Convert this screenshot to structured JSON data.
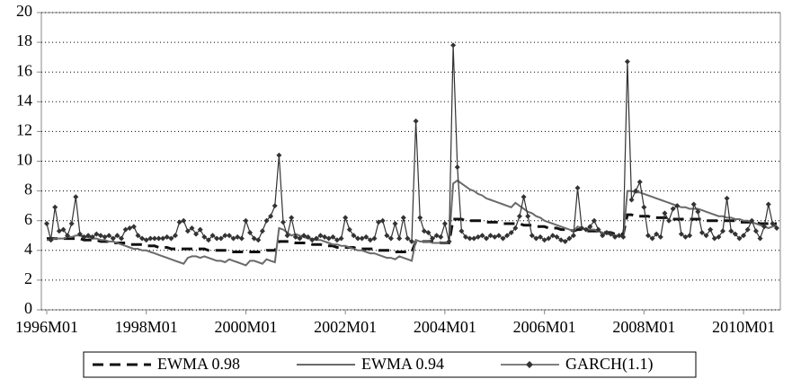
{
  "chart_data": {
    "type": "line",
    "categories": [
      "1996M01",
      null,
      null,
      null,
      null,
      null,
      null,
      null,
      null,
      null,
      null,
      null,
      null,
      null,
      null,
      null,
      null,
      null,
      null,
      null,
      null,
      null,
      null,
      null,
      "1998M01",
      null,
      null,
      null,
      null,
      null,
      null,
      null,
      null,
      null,
      null,
      null,
      null,
      null,
      null,
      null,
      null,
      null,
      null,
      null,
      null,
      null,
      null,
      null,
      "2000M01",
      null,
      null,
      null,
      null,
      null,
      null,
      null,
      null,
      null,
      null,
      null,
      null,
      null,
      null,
      null,
      null,
      null,
      null,
      null,
      null,
      null,
      null,
      null,
      "2002M01",
      null,
      null,
      null,
      null,
      null,
      null,
      null,
      null,
      null,
      null,
      null,
      null,
      null,
      null,
      null,
      null,
      null,
      null,
      null,
      null,
      null,
      null,
      null,
      "2004M01",
      null,
      null,
      null,
      null,
      null,
      null,
      null,
      null,
      null,
      null,
      null,
      null,
      null,
      null,
      null,
      null,
      null,
      null,
      null,
      null,
      null,
      null,
      null,
      "2006M01",
      null,
      null,
      null,
      null,
      null,
      null,
      null,
      null,
      null,
      null,
      null,
      null,
      null,
      null,
      null,
      null,
      null,
      null,
      null,
      null,
      null,
      null,
      null,
      "2008M01",
      null,
      null,
      null,
      null,
      null,
      null,
      null,
      null,
      null,
      null,
      null,
      null,
      null,
      null,
      null,
      null,
      null,
      null,
      null,
      null,
      null,
      null,
      null,
      "2010M01",
      null,
      null,
      null,
      null,
      null,
      null,
      null,
      null
    ],
    "series": [
      {
        "name": "EWMA 0.98",
        "color": "#111111",
        "dash": true,
        "values": [
          4.8,
          4.8,
          4.8,
          4.8,
          4.8,
          4.8,
          4.8,
          4.8,
          4.8,
          4.7,
          4.7,
          4.7,
          4.7,
          4.6,
          4.6,
          4.6,
          4.5,
          4.5,
          4.5,
          4.5,
          4.4,
          4.4,
          4.4,
          4.4,
          4.3,
          4.3,
          4.3,
          4.2,
          4.2,
          4.2,
          4.1,
          4.1,
          4.1,
          4.1,
          4.1,
          4.1,
          4.1,
          4.1,
          4.1,
          4.0,
          4.0,
          4.0,
          4.0,
          4.0,
          4.0,
          3.9,
          3.9,
          3.9,
          3.9,
          3.9,
          3.9,
          3.9,
          3.9,
          4.0,
          4.0,
          4.0,
          4.6,
          4.6,
          4.6,
          4.6,
          4.5,
          4.5,
          4.5,
          4.5,
          4.4,
          4.4,
          4.4,
          4.3,
          4.3,
          4.3,
          4.2,
          4.2,
          4.2,
          4.2,
          4.2,
          4.1,
          4.1,
          4.1,
          4.1,
          4.1,
          4.0,
          4.0,
          4.0,
          4.0,
          3.9,
          3.9,
          3.9,
          3.9,
          3.9,
          4.6,
          4.6,
          4.6,
          4.6,
          4.6,
          4.6,
          4.5,
          4.5,
          4.5,
          6.1,
          6.1,
          6.1,
          6.0,
          6.0,
          6.0,
          6.0,
          6.0,
          5.9,
          5.9,
          5.9,
          5.9,
          5.8,
          5.8,
          5.8,
          5.8,
          5.8,
          5.7,
          5.7,
          5.7,
          5.6,
          5.6,
          5.6,
          5.5,
          5.5,
          5.5,
          5.4,
          5.4,
          5.4,
          5.3,
          5.4,
          5.4,
          5.3,
          5.3,
          5.3,
          5.3,
          5.2,
          5.2,
          5.2,
          5.1,
          5.1,
          5.1,
          6.4,
          6.4,
          6.3,
          6.3,
          6.3,
          6.3,
          6.2,
          6.2,
          6.2,
          6.2,
          6.2,
          6.1,
          6.1,
          6.1,
          6.1,
          6.1,
          6.1,
          6.1,
          6.1,
          6.0,
          6.0,
          6.0,
          6.0,
          6.0,
          6.0,
          6.0,
          6.0,
          5.9,
          5.9,
          5.9,
          5.9,
          5.9,
          5.8,
          5.8,
          5.8,
          5.8,
          5.8
        ]
      },
      {
        "name": "EWMA 0.94",
        "color": "#6a6a6a",
        "values": [
          4.7,
          4.7,
          4.8,
          4.8,
          4.8,
          4.9,
          4.9,
          5.0,
          5.0,
          4.9,
          4.9,
          4.8,
          4.8,
          4.7,
          4.7,
          4.6,
          4.6,
          4.5,
          4.4,
          4.3,
          4.2,
          4.1,
          4.1,
          4.0,
          4.0,
          3.9,
          3.8,
          3.7,
          3.6,
          3.5,
          3.4,
          3.3,
          3.2,
          3.1,
          3.5,
          3.6,
          3.6,
          3.5,
          3.6,
          3.5,
          3.4,
          3.3,
          3.3,
          3.2,
          3.4,
          3.3,
          3.2,
          3.1,
          3.0,
          3.3,
          3.3,
          3.2,
          3.1,
          3.4,
          3.3,
          3.2,
          5.5,
          5.4,
          5.2,
          5.0,
          5.1,
          5.0,
          4.9,
          4.8,
          4.8,
          4.7,
          4.7,
          4.6,
          4.5,
          4.4,
          4.4,
          4.3,
          4.3,
          4.2,
          4.1,
          4.0,
          4.0,
          3.9,
          3.8,
          3.8,
          3.7,
          3.6,
          3.5,
          3.5,
          3.4,
          3.6,
          3.5,
          3.4,
          3.3,
          4.7,
          4.6,
          4.6,
          4.6,
          4.5,
          4.5,
          4.5,
          4.5,
          4.5,
          8.5,
          8.7,
          8.5,
          8.3,
          8.1,
          8.0,
          7.8,
          7.7,
          7.5,
          7.4,
          7.3,
          7.2,
          7.1,
          7.0,
          6.9,
          7.2,
          7.0,
          6.8,
          6.6,
          6.5,
          6.3,
          6.2,
          6.0,
          5.9,
          5.8,
          5.7,
          5.6,
          5.5,
          5.4,
          5.3,
          5.6,
          5.5,
          5.4,
          5.4,
          5.4,
          5.3,
          5.2,
          5.1,
          5.1,
          5.0,
          5.0,
          4.9,
          8.0,
          8.0,
          7.9,
          7.9,
          7.8,
          7.7,
          7.6,
          7.5,
          7.4,
          7.3,
          7.2,
          7.1,
          7.0,
          6.9,
          6.9,
          6.8,
          6.8,
          6.8,
          6.7,
          6.6,
          6.5,
          6.4,
          6.3,
          6.3,
          6.2,
          6.2,
          6.1,
          6.1,
          6.0,
          6.0,
          5.9,
          5.8,
          5.7,
          5.6,
          5.5,
          5.6,
          5.7
        ]
      },
      {
        "name": "GARCH(1.1)",
        "color": "#333333",
        "marker": "diamond",
        "values": [
          5.8,
          4.7,
          6.9,
          5.3,
          5.4,
          5.0,
          5.8,
          7.6,
          5.1,
          4.9,
          5.0,
          4.9,
          5.1,
          5.0,
          4.9,
          5.0,
          4.8,
          5.0,
          4.8,
          5.4,
          5.5,
          5.6,
          5.0,
          4.8,
          4.7,
          4.8,
          4.8,
          4.8,
          4.8,
          4.9,
          4.8,
          5.0,
          5.9,
          6.0,
          5.3,
          5.5,
          5.1,
          5.4,
          4.9,
          4.7,
          5.0,
          4.8,
          4.8,
          5.0,
          5.0,
          4.8,
          4.9,
          4.8,
          6.0,
          5.2,
          4.8,
          4.7,
          5.3,
          6.0,
          6.3,
          7.0,
          10.4,
          5.9,
          5.0,
          6.2,
          4.9,
          4.8,
          5.0,
          4.9,
          4.7,
          4.8,
          5.0,
          4.9,
          4.8,
          4.9,
          4.7,
          4.8,
          6.2,
          5.4,
          5.0,
          4.8,
          4.8,
          4.9,
          4.7,
          4.8,
          5.9,
          6.0,
          5.0,
          4.8,
          5.8,
          4.8,
          6.2,
          4.8,
          4.6,
          12.7,
          6.2,
          5.3,
          5.2,
          4.8,
          5.0,
          4.9,
          5.8,
          4.6,
          17.8,
          9.6,
          5.3,
          4.9,
          4.8,
          4.8,
          4.9,
          5.0,
          4.8,
          5.0,
          4.9,
          5.0,
          4.8,
          5.0,
          5.2,
          5.5,
          6.3,
          7.6,
          6.3,
          5.0,
          4.8,
          4.9,
          4.7,
          4.8,
          5.0,
          4.9,
          4.7,
          4.6,
          4.8,
          5.0,
          8.2,
          5.5,
          5.4,
          5.6,
          6.0,
          5.4,
          5.0,
          5.2,
          5.1,
          4.9,
          5.0,
          4.9,
          16.7,
          7.4,
          8.0,
          8.6,
          6.9,
          5.0,
          4.8,
          5.1,
          4.9,
          6.5,
          6.0,
          6.8,
          7.0,
          5.1,
          4.9,
          5.0,
          7.1,
          6.6,
          5.2,
          5.0,
          5.4,
          4.8,
          4.9,
          5.3,
          7.5,
          5.3,
          5.1,
          4.8,
          5.0,
          5.4,
          6.0,
          5.3,
          4.8,
          5.6,
          7.1,
          5.8,
          5.5
        ]
      }
    ],
    "ylim": [
      0,
      20
    ],
    "yticks": [
      0,
      2,
      4,
      6,
      8,
      10,
      12,
      14,
      16,
      18,
      20
    ],
    "grid": true,
    "legend": "bottom"
  }
}
